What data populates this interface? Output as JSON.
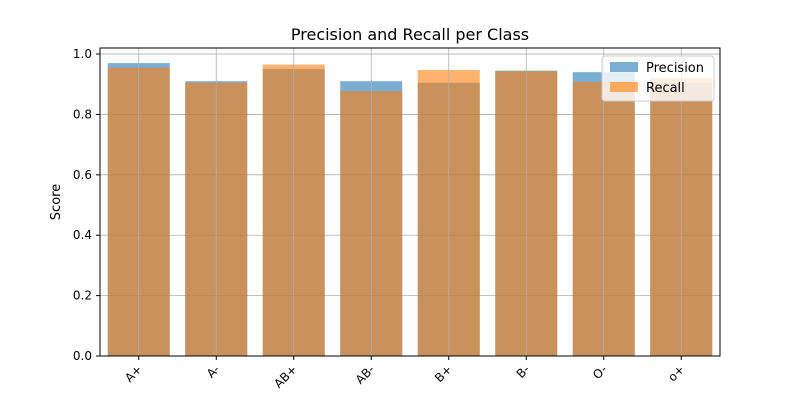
{
  "chart_data": {
    "type": "bar",
    "title": "Precision and Recall per Class",
    "xlabel": "",
    "ylabel": "Score",
    "ylim": [
      0,
      1.02
    ],
    "yticks": [
      0.0,
      0.2,
      0.4,
      0.6,
      0.8,
      1.0
    ],
    "ytick_labels": [
      "0.0",
      "0.2",
      "0.4",
      "0.6",
      "0.8",
      "1.0"
    ],
    "categories": [
      "A+",
      "A-",
      "AB+",
      "AB-",
      "B+",
      "B-",
      "O-",
      "o+"
    ],
    "series": [
      {
        "name": "Precision",
        "color": "#1f77b4",
        "opacity": 0.6,
        "values": [
          0.97,
          0.91,
          0.95,
          0.91,
          0.905,
          0.945,
          0.94,
          0.905
        ]
      },
      {
        "name": "Recall",
        "color": "#ff7f0e",
        "opacity": 0.6,
        "values": [
          0.955,
          0.905,
          0.965,
          0.877,
          0.947,
          0.943,
          0.908,
          0.92
        ]
      }
    ],
    "grid": true,
    "legend": "top-right"
  }
}
